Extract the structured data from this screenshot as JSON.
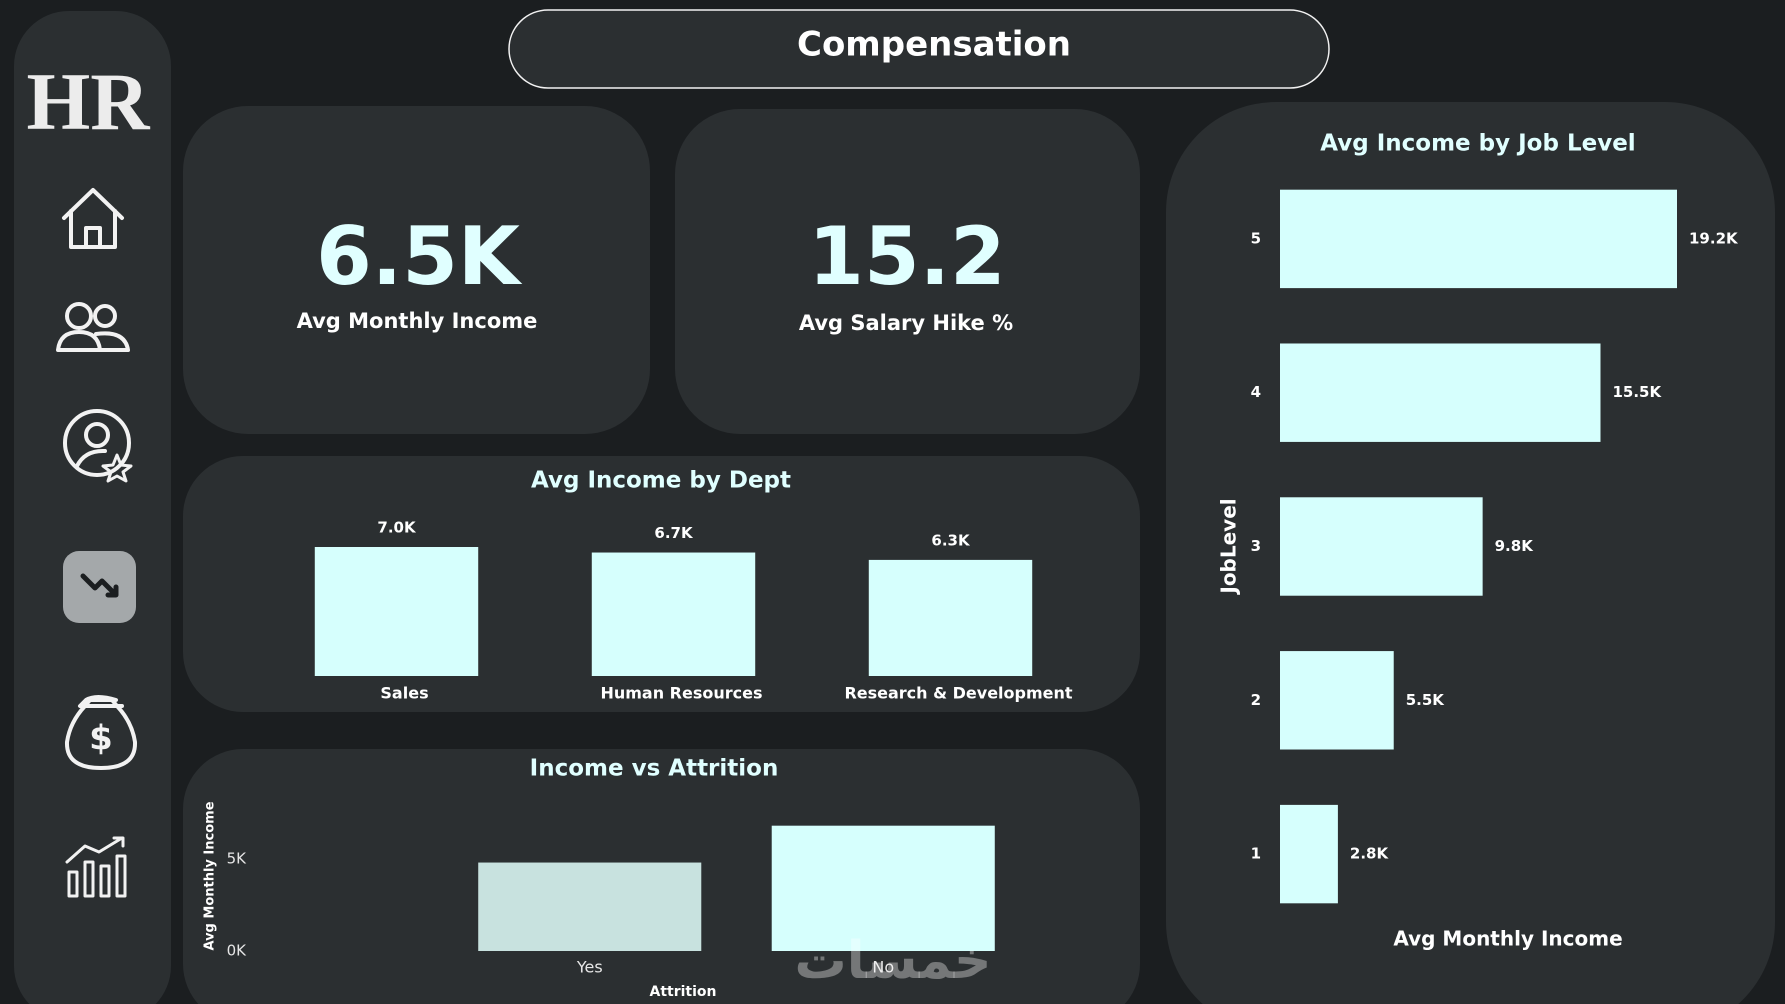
{
  "header": {
    "title": "Compensation"
  },
  "sidebar": {
    "logo": "HR"
  },
  "kpis": [
    {
      "value": "6.5K",
      "label": "Avg Monthly Income"
    },
    {
      "value": "15.2",
      "label": "Avg Salary Hike %"
    }
  ],
  "chart_data": [
    {
      "type": "bar",
      "title": "Avg Income by Dept",
      "categories": [
        "Sales",
        "Human Resources",
        "Research & Development"
      ],
      "values": [
        7000,
        6700,
        6300
      ],
      "value_labels": [
        "7.0K",
        "6.7K",
        "6.3K"
      ],
      "color": "#d6fffd"
    },
    {
      "type": "bar",
      "title": "Income vs Attrition",
      "x_label": "Attrition",
      "y_label": "Avg Monthly Income",
      "categories": [
        "Yes",
        "No"
      ],
      "values": [
        4800,
        6800
      ],
      "colors": [
        "#c8e2df",
        "#d6fffd"
      ],
      "ylim": [
        0,
        7000
      ],
      "yticks": [
        {
          "value": 0,
          "label": "0K"
        },
        {
          "value": 5000,
          "label": "5K"
        }
      ]
    },
    {
      "type": "bar",
      "orientation": "horizontal",
      "title": "Avg Income by Job Level",
      "x_label": "Avg Monthly Income",
      "y_label": "JobLevel",
      "categories": [
        "5",
        "4",
        "3",
        "2",
        "1"
      ],
      "values": [
        19200,
        15500,
        9800,
        5500,
        2800
      ],
      "value_labels": [
        "19.2K",
        "15.5K",
        "9.8K",
        "5.5K",
        "2.8K"
      ],
      "color": "#d6fffd"
    }
  ],
  "watermark": "خمسات"
}
